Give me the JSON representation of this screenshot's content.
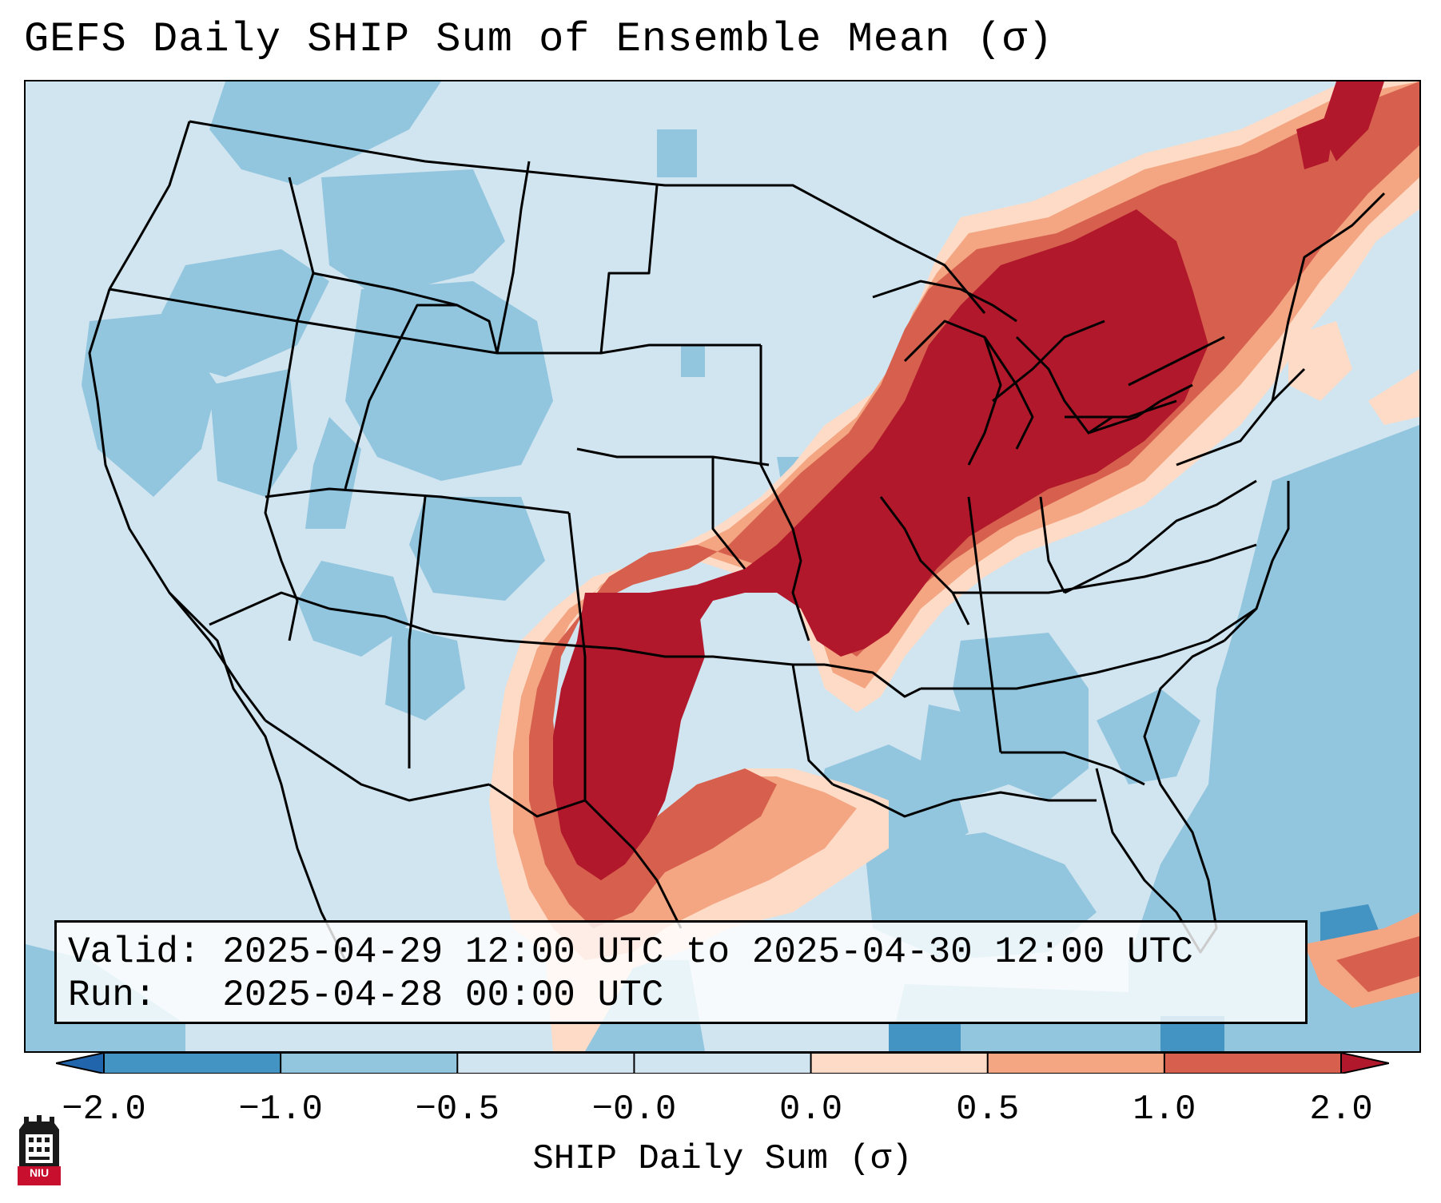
{
  "title": "GEFS Daily SHIP Sum of Ensemble Mean (σ)",
  "info": {
    "valid_line": "Valid: 2025-04-29 12:00 UTC to 2025-04-30 12:00 UTC",
    "run_line": "Run:   2025-04-28 00:00 UTC"
  },
  "colorbar": {
    "label": "SHIP Daily Sum (σ)",
    "ticks": [
      "−2.0",
      "−1.0",
      "−0.5",
      "−0.0",
      "0.0",
      "0.5",
      "1.0",
      "2.0"
    ],
    "colors": [
      "#4393c3",
      "#92c5de",
      "#d1e5f0",
      "#d1e5f0",
      "#fddbc7",
      "#f4a582",
      "#d6604d",
      "#b2182b"
    ],
    "under_color": "#2166ac",
    "over_color": "#b2182b"
  },
  "map": {
    "background_color": "#d1e5f0",
    "colors": {
      "strong_negative": "#4393c3",
      "weak_negative": "#92c5de",
      "near_zero_negative": "#d1e5f0",
      "weak_positive": "#fddbc7",
      "moderate_positive": "#f4a582",
      "high_positive": "#d6604d",
      "extreme_positive": "#b2182b"
    }
  },
  "logo": {
    "text": "NIU",
    "icon": "niu-castle-icon",
    "color": "#c8102e"
  }
}
